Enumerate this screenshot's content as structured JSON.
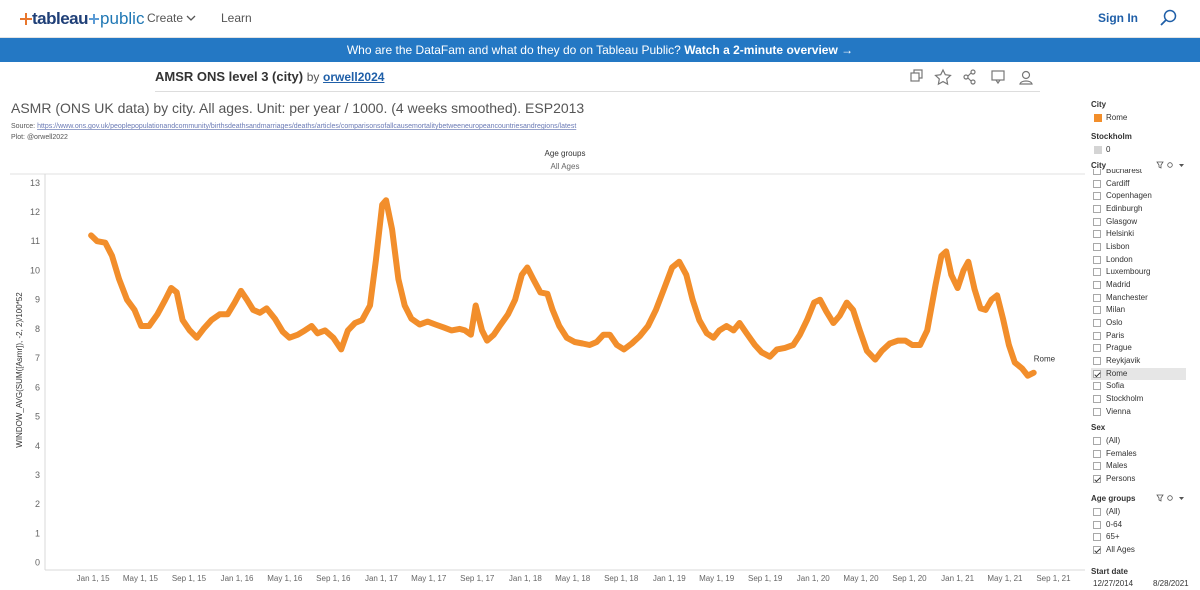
{
  "nav": {
    "logo_brand": "tableau",
    "logo_product": "public",
    "items": [
      "Create",
      "Learn"
    ],
    "sign_in": "Sign In"
  },
  "banner": {
    "text": "Who are the DataFam and what do they do on Tableau Public?",
    "link": "Watch a 2-minute overview →"
  },
  "viz_header": {
    "title": "AMSR ONS level 3 (city)",
    "by": "by",
    "author": "orwell2024"
  },
  "chart_data": {
    "type": "line",
    "title": "ASMR (ONS UK data) by city. All ages. Unit: per year / 1000. (4 weeks smoothed). ESP2013",
    "source_label": "Source:",
    "source_url": "https://www.ons.gov.uk/peoplepopulationandcommunity/birthsdeathsandmarriages/deaths/articles/comparisonsofallcausemortalitybetweeneuropeancountriesandregions/latest",
    "credit": "Plot: @orwell2022",
    "column_header": "Age groups",
    "column_value": "All Ages",
    "y_label": "WINDOW_AVG(SUM([Asmr]), -2, 2)/100*52",
    "x": [
      "2014-12-27",
      "2015-01-11",
      "2015-02-01",
      "2015-02-18",
      "2015-03-08",
      "2015-03-28",
      "2015-04-16",
      "2015-05-03",
      "2015-05-23",
      "2015-06-13",
      "2015-07-03",
      "2015-07-18",
      "2015-08-01",
      "2015-08-16",
      "2015-09-03",
      "2015-09-21",
      "2015-10-08",
      "2015-10-28",
      "2015-11-18",
      "2015-12-08",
      "2015-12-26",
      "2016-01-11",
      "2016-01-26",
      "2016-02-11",
      "2016-02-28",
      "2016-03-16",
      "2016-04-06",
      "2016-04-26",
      "2016-05-13",
      "2016-06-03",
      "2016-06-21",
      "2016-07-08",
      "2016-07-23",
      "2016-08-11",
      "2016-09-01",
      "2016-09-21",
      "2016-10-08",
      "2016-10-26",
      "2016-11-13",
      "2016-12-03",
      "2016-12-18",
      "2017-01-03",
      "2017-01-13",
      "2017-01-28",
      "2017-02-13",
      "2017-03-01",
      "2017-03-18",
      "2017-04-08",
      "2017-04-28",
      "2017-05-18",
      "2017-06-08",
      "2017-06-28",
      "2017-07-18",
      "2017-08-01",
      "2017-08-16",
      "2017-08-28",
      "2017-09-13",
      "2017-09-26",
      "2017-10-13",
      "2017-10-28",
      "2017-11-18",
      "2017-12-06",
      "2017-12-23",
      "2018-01-06",
      "2018-01-21",
      "2018-02-08",
      "2018-02-26",
      "2018-03-11",
      "2018-03-28",
      "2018-04-16",
      "2018-05-06",
      "2018-05-26",
      "2018-06-13",
      "2018-07-01",
      "2018-07-18",
      "2018-08-03",
      "2018-08-21",
      "2018-09-08",
      "2018-09-28",
      "2018-10-18",
      "2018-11-08",
      "2018-11-28",
      "2018-12-18",
      "2019-01-08",
      "2019-01-26",
      "2019-02-13",
      "2019-03-01",
      "2019-03-18",
      "2019-04-06",
      "2019-04-23",
      "2019-05-08",
      "2019-05-26",
      "2019-06-13",
      "2019-06-28",
      "2019-07-16",
      "2019-08-06",
      "2019-08-23",
      "2019-09-13",
      "2019-10-01",
      "2019-10-21",
      "2019-11-11",
      "2019-11-28",
      "2019-12-16",
      "2020-01-03",
      "2020-01-18",
      "2020-02-03",
      "2020-02-21",
      "2020-03-08",
      "2020-03-26",
      "2020-04-11",
      "2020-04-28",
      "2020-05-16",
      "2020-06-06",
      "2020-06-23",
      "2020-07-13",
      "2020-08-03",
      "2020-08-21",
      "2020-09-08",
      "2020-09-28",
      "2020-10-16",
      "2020-11-06",
      "2020-11-21",
      "2020-12-03",
      "2020-12-16",
      "2021-01-01",
      "2021-01-16",
      "2021-01-28",
      "2021-02-13",
      "2021-02-28",
      "2021-03-13",
      "2021-03-28",
      "2021-04-11",
      "2021-04-26",
      "2021-05-11",
      "2021-05-26",
      "2021-06-13",
      "2021-06-28",
      "2021-07-13"
    ],
    "series": [
      {
        "name": "Rome",
        "color": "#f28e2b",
        "values": [
          11.2,
          11.0,
          10.95,
          10.5,
          9.7,
          9.0,
          8.65,
          8.1,
          8.1,
          8.5,
          9.0,
          9.4,
          9.25,
          8.3,
          7.95,
          7.7,
          8.0,
          8.3,
          8.5,
          8.5,
          8.9,
          9.3,
          9.0,
          8.65,
          8.55,
          8.7,
          8.35,
          7.9,
          7.7,
          7.8,
          7.95,
          8.1,
          7.85,
          7.95,
          7.7,
          7.3,
          7.95,
          8.2,
          8.3,
          8.8,
          10.35,
          12.25,
          12.4,
          11.4,
          9.7,
          8.8,
          8.35,
          8.15,
          8.25,
          8.15,
          8.05,
          7.95,
          8.0,
          7.95,
          7.8,
          8.8,
          7.95,
          7.6,
          7.8,
          8.1,
          8.5,
          9.0,
          9.85,
          10.1,
          9.7,
          9.25,
          9.2,
          8.65,
          8.1,
          7.7,
          7.55,
          7.5,
          7.45,
          7.55,
          7.8,
          7.8,
          7.45,
          7.3,
          7.5,
          7.75,
          8.1,
          8.65,
          9.35,
          10.1,
          10.3,
          9.85,
          9.0,
          8.3,
          7.85,
          7.7,
          7.95,
          8.1,
          7.95,
          8.2,
          7.85,
          7.45,
          7.2,
          7.05,
          7.3,
          7.35,
          7.45,
          7.8,
          8.3,
          8.9,
          9.0,
          8.6,
          8.2,
          8.45,
          8.9,
          8.65,
          7.95,
          7.25,
          6.95,
          7.25,
          7.5,
          7.6,
          7.6,
          7.45,
          7.45,
          7.95,
          9.5,
          10.5,
          10.65,
          9.85,
          9.4,
          10.0,
          10.3,
          9.35,
          8.7,
          8.65,
          9.0,
          9.15,
          8.35,
          7.45,
          6.85,
          6.65,
          6.4,
          6.5
        ]
      }
    ],
    "xlim": [
      "2014-09-01",
      "2021-11-20"
    ],
    "xticks": [
      {
        "value": "2015-01-01",
        "label": "Jan 1, 15"
      },
      {
        "value": "2015-05-01",
        "label": "May 1, 15"
      },
      {
        "value": "2015-09-01",
        "label": "Sep 1, 15"
      },
      {
        "value": "2016-01-01",
        "label": "Jan 1, 16"
      },
      {
        "value": "2016-05-01",
        "label": "May 1, 16"
      },
      {
        "value": "2016-09-01",
        "label": "Sep 1, 16"
      },
      {
        "value": "2017-01-01",
        "label": "Jan 1, 17"
      },
      {
        "value": "2017-05-01",
        "label": "May 1, 17"
      },
      {
        "value": "2017-09-01",
        "label": "Sep 1, 17"
      },
      {
        "value": "2018-01-01",
        "label": "Jan 1, 18"
      },
      {
        "value": "2018-05-01",
        "label": "May 1, 18"
      },
      {
        "value": "2018-09-01",
        "label": "Sep 1, 18"
      },
      {
        "value": "2019-01-01",
        "label": "Jan 1, 19"
      },
      {
        "value": "2019-05-01",
        "label": "May 1, 19"
      },
      {
        "value": "2019-09-01",
        "label": "Sep 1, 19"
      },
      {
        "value": "2020-01-01",
        "label": "Jan 1, 20"
      },
      {
        "value": "2020-05-01",
        "label": "May 1, 20"
      },
      {
        "value": "2020-09-01",
        "label": "Sep 1, 20"
      },
      {
        "value": "2021-01-01",
        "label": "Jan 1, 21"
      },
      {
        "value": "2021-05-01",
        "label": "May 1, 21"
      },
      {
        "value": "2021-09-01",
        "label": "Sep 1, 21"
      }
    ],
    "ylim": [
      -0.25,
      13.3
    ],
    "yticks": [
      0,
      1,
      2,
      3,
      4,
      5,
      6,
      7,
      8,
      9,
      10,
      11,
      12,
      13
    ],
    "grid": false
  },
  "legends": [
    {
      "title": "City",
      "items": [
        {
          "label": "Rome",
          "color": "#f28e2b"
        }
      ]
    },
    {
      "title": "Stockholm",
      "items": [
        {
          "label": "0",
          "color": "#d4d4d4"
        }
      ]
    }
  ],
  "filters": [
    {
      "title": "City",
      "items": [
        {
          "label": "Bucharest",
          "checked": false
        },
        {
          "label": "Cardiff",
          "checked": false
        },
        {
          "label": "Copenhagen",
          "checked": false
        },
        {
          "label": "Edinburgh",
          "checked": false
        },
        {
          "label": "Glasgow",
          "checked": false
        },
        {
          "label": "Helsinki",
          "checked": false
        },
        {
          "label": "Lisbon",
          "checked": false
        },
        {
          "label": "London",
          "checked": false
        },
        {
          "label": "Luxembourg",
          "checked": false
        },
        {
          "label": "Madrid",
          "checked": false
        },
        {
          "label": "Manchester",
          "checked": false
        },
        {
          "label": "Milan",
          "checked": false
        },
        {
          "label": "Oslo",
          "checked": false
        },
        {
          "label": "Paris",
          "checked": false
        },
        {
          "label": "Prague",
          "checked": false
        },
        {
          "label": "Reykjavik",
          "checked": false
        },
        {
          "label": "Rome",
          "checked": true
        },
        {
          "label": "Sofia",
          "checked": false
        },
        {
          "label": "Stockholm",
          "checked": false
        },
        {
          "label": "Vienna",
          "checked": false
        }
      ]
    },
    {
      "title": "Sex",
      "items": [
        {
          "label": "(All)",
          "checked": false
        },
        {
          "label": "Females",
          "checked": false
        },
        {
          "label": "Males",
          "checked": false
        },
        {
          "label": "Persons",
          "checked": true
        }
      ]
    },
    {
      "title": "Age groups",
      "items": [
        {
          "label": "(All)",
          "checked": false
        },
        {
          "label": "0-64",
          "checked": false
        },
        {
          "label": "65+",
          "checked": false
        },
        {
          "label": "All Ages",
          "checked": true
        }
      ]
    }
  ],
  "date_filter": {
    "title": "Start date",
    "from": "12/27/2014",
    "to": "8/28/2021"
  }
}
